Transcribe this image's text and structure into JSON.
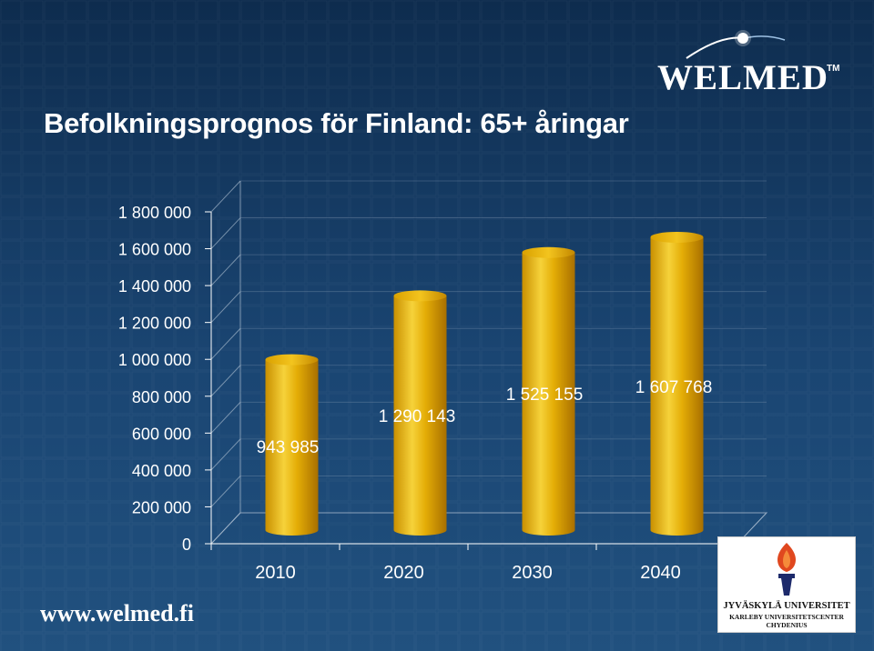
{
  "slide": {
    "title": "Befolkningsprognos för Finland: 65+ åringar",
    "website": "www.welmed.fi",
    "logo_text": "WELMED",
    "logo_tm": "TM",
    "university_line1": "JYVÄSKYLÄ UNIVERSITET",
    "university_line2": "KARLEBY UNIVERSITETSCENTER",
    "university_line3": "CHYDENIUS"
  },
  "colors": {
    "background_top": "#0e2c4e",
    "background_bottom": "#21517f",
    "bar_gold": "#e0a800",
    "bar_highlight": "#f6d23a",
    "text": "#ffffff",
    "grid": "#9fb3c8"
  },
  "chart_data": {
    "type": "bar",
    "style": "3d-cylinder",
    "categories": [
      "2010",
      "2020",
      "2030",
      "2040"
    ],
    "values": [
      943985,
      1290143,
      1525155,
      1607768
    ],
    "value_labels": [
      "943 985",
      "1 290 143",
      "1 525 155",
      "1 607 768"
    ],
    "y_ticks": [
      {
        "value": 0,
        "label": "0"
      },
      {
        "value": 200000,
        "label": "200 000"
      },
      {
        "value": 400000,
        "label": "400 000"
      },
      {
        "value": 600000,
        "label": "600 000"
      },
      {
        "value": 800000,
        "label": "800 000"
      },
      {
        "value": 1000000,
        "label": "1 000 000"
      },
      {
        "value": 1200000,
        "label": "1 200 000"
      },
      {
        "value": 1400000,
        "label": "1 400 000"
      },
      {
        "value": 1600000,
        "label": "1 600 000"
      },
      {
        "value": 1800000,
        "label": "1 800 000"
      }
    ],
    "ylim": [
      0,
      1800000
    ],
    "grid": true,
    "legend": "none",
    "title": "",
    "xlabel": "",
    "ylabel": ""
  }
}
